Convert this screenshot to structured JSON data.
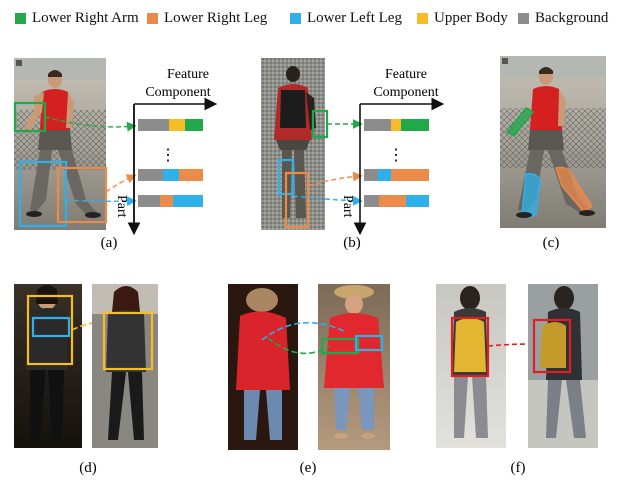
{
  "legend": {
    "items": [
      {
        "label": "Lower Right Arm",
        "color": "#21a84a"
      },
      {
        "label": "Lower Right Leg",
        "color": "#ec8a4a"
      },
      {
        "label": "Lower Left Leg",
        "color": "#2eb0ea"
      },
      {
        "label": "Upper Body",
        "color": "#f7bd26"
      },
      {
        "label": "Background",
        "color": "#8c8c8c"
      }
    ]
  },
  "axes": {
    "feature_label_line1": "Feature",
    "feature_label_line2": "Component",
    "part_label": "Part",
    "ellipsis": "⋮"
  },
  "panels": {
    "a": "(a)",
    "b": "(b)",
    "c": "(c)",
    "d": "(d)",
    "e": "(e)",
    "f": "(f)"
  },
  "colors": {
    "green": "#21a84a",
    "orange": "#ec8a4a",
    "blue": "#2eb0ea",
    "yellow": "#f7bd26",
    "gray": "#8c8c8c",
    "red": "#e02020"
  }
}
